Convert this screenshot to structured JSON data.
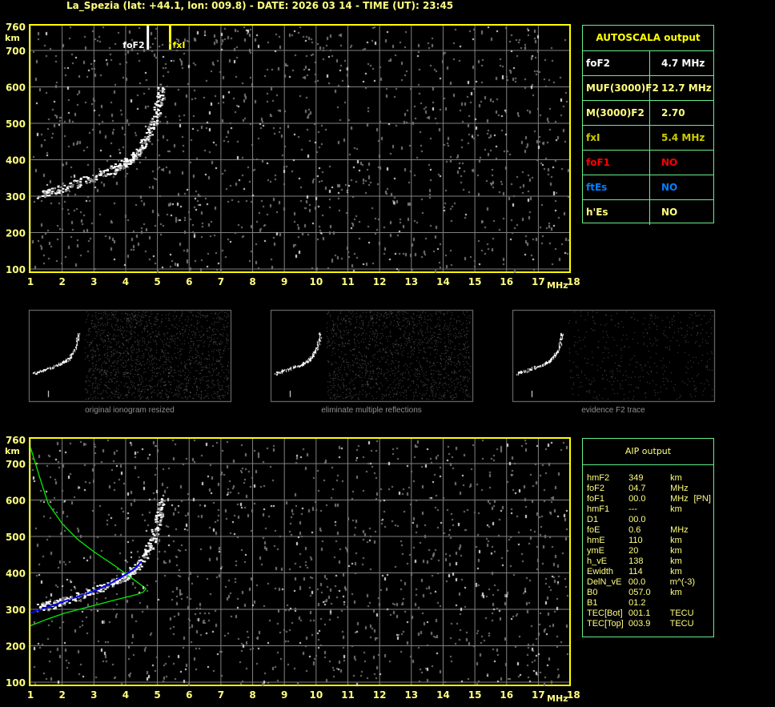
{
  "title": "La_Spezia (lat: +44.1, lon: 009.8) - DATE: 2026 03 14 - TIME (UT): 23:45",
  "colors": {
    "axis": "#ffff00",
    "labels": "#ffff80",
    "grid": "#808080",
    "trace": "#ffffff",
    "profile": "#00ee00",
    "blue_trace": "#0000ff",
    "table_border": "#66ee88",
    "red": "#ff0000",
    "blue": "#0080ff",
    "olive": "#cccc00"
  },
  "autoscala": {
    "header": "AUTOSCALA output",
    "rows": [
      {
        "key": "foF2",
        "value": "4.7 MHz",
        "color": "#ffffff"
      },
      {
        "key": "MUF(3000)F2",
        "value": "12.7 MHz",
        "color": "#ffff80"
      },
      {
        "key": "M(3000)F2",
        "value": "2.70",
        "color": "#ffff80"
      },
      {
        "key": "fxI",
        "value": "5.4 MHz",
        "color": "#cccc00"
      },
      {
        "key": "foF1",
        "value": "NO",
        "color": "#ff0000"
      },
      {
        "key": "ftEs",
        "value": "NO",
        "color": "#0080ff"
      },
      {
        "key": "h'Es",
        "value": "NO",
        "color": "#ffff80"
      }
    ]
  },
  "aip": {
    "header": "AIP output",
    "rows": [
      [
        "hmF2",
        "349",
        "km",
        ""
      ],
      [
        "foF2",
        "04.7",
        "MHz",
        ""
      ],
      [
        "foF1",
        "00.0",
        "MHz",
        "[PN]"
      ],
      [
        "hmF1",
        "---",
        "km",
        ""
      ],
      [
        "D1",
        "00.0",
        "",
        ""
      ],
      [
        "foE",
        "0.6",
        "MHz",
        ""
      ],
      [
        "hmE",
        "110",
        "km",
        ""
      ],
      [
        "ymE",
        "20",
        "km",
        ""
      ],
      [
        "h_vE",
        "138",
        "km",
        ""
      ],
      [
        "Ewidth",
        "114",
        "km",
        ""
      ],
      [
        "DelN_vE",
        "00.0",
        "m^(-3)",
        ""
      ],
      [
        "B0",
        "057.0",
        "km",
        ""
      ],
      [
        "B1",
        "01.2",
        "",
        ""
      ],
      [
        "TEC[Bot]",
        "001.1",
        "TECU",
        ""
      ],
      [
        "TEC[Top]",
        "003.9",
        "TECU",
        ""
      ]
    ]
  },
  "thumbnails": [
    {
      "caption": "original ionogram resized"
    },
    {
      "caption": "eliminate multiple reflections"
    },
    {
      "caption": "evidence F2 trace"
    }
  ],
  "chart_data": [
    {
      "type": "scatter",
      "xunit": "MHz",
      "yunit": "km",
      "xlim": [
        1,
        18
      ],
      "ylim": [
        100,
        760
      ],
      "xticks": [
        1,
        2,
        3,
        4,
        5,
        6,
        7,
        8,
        9,
        10,
        11,
        12,
        13,
        14,
        15,
        16,
        17,
        18
      ],
      "yticks": [
        100,
        200,
        300,
        400,
        500,
        600,
        700,
        760
      ],
      "grid": true,
      "markers": [
        {
          "label": "foF2",
          "x": 4.7,
          "color": "#ffffff"
        },
        {
          "label": "fxI",
          "x": 5.4,
          "color": "#ffff00"
        }
      ],
      "f2_trace": [
        [
          1.3,
          310
        ],
        [
          1.6,
          318
        ],
        [
          2,
          328
        ],
        [
          2.5,
          342
        ],
        [
          3,
          358
        ],
        [
          3.5,
          375
        ],
        [
          3.8,
          388
        ],
        [
          4,
          398
        ],
        [
          4.2,
          412
        ],
        [
          4.4,
          430
        ],
        [
          4.6,
          458
        ],
        [
          4.8,
          490
        ],
        [
          4.95,
          530
        ],
        [
          5.05,
          570
        ],
        [
          5.1,
          610
        ]
      ]
    },
    {
      "type": "line",
      "xunit": "MHz",
      "yunit": "km",
      "xlim": [
        1,
        18
      ],
      "ylim": [
        100,
        760
      ],
      "xticks": [
        1,
        2,
        3,
        4,
        5,
        6,
        7,
        8,
        9,
        10,
        11,
        12,
        13,
        14,
        15,
        16,
        17,
        18
      ],
      "yticks": [
        100,
        200,
        300,
        400,
        500,
        600,
        700,
        760
      ],
      "grid": true,
      "f2_trace": [
        [
          1.3,
          310
        ],
        [
          1.6,
          318
        ],
        [
          2,
          328
        ],
        [
          2.5,
          342
        ],
        [
          3,
          358
        ],
        [
          3.5,
          375
        ],
        [
          3.8,
          388
        ],
        [
          4,
          398
        ],
        [
          4.2,
          412
        ],
        [
          4.4,
          430
        ],
        [
          4.6,
          458
        ],
        [
          4.8,
          490
        ],
        [
          4.95,
          530
        ],
        [
          5.05,
          570
        ],
        [
          5.1,
          610
        ]
      ],
      "series": [
        {
          "kind": "profile",
          "color": "#00ee00",
          "points": [
            [
              1,
              745
            ],
            [
              1.3,
              660
            ],
            [
              1.56,
              590
            ],
            [
              2,
              535
            ],
            [
              2.49,
              492
            ],
            [
              3,
              458
            ],
            [
              3.65,
              420
            ],
            [
              4.2,
              385
            ],
            [
              4.64,
              357
            ],
            [
              4.55,
              347
            ],
            [
              4.33,
              340
            ],
            [
              3.5,
              322
            ],
            [
              2.06,
              289
            ],
            [
              1.5,
              272
            ],
            [
              1,
              255
            ]
          ]
        },
        {
          "kind": "scaled_trace",
          "color": "#0000ff",
          "points": [
            [
              1,
              290
            ],
            [
              1.5,
              305
            ],
            [
              2,
              320
            ],
            [
              2.5,
              335
            ],
            [
              3,
              350
            ],
            [
              3.5,
              370
            ],
            [
              4,
              395
            ],
            [
              4.3,
              412
            ],
            [
              4.5,
              432
            ]
          ]
        }
      ]
    }
  ]
}
